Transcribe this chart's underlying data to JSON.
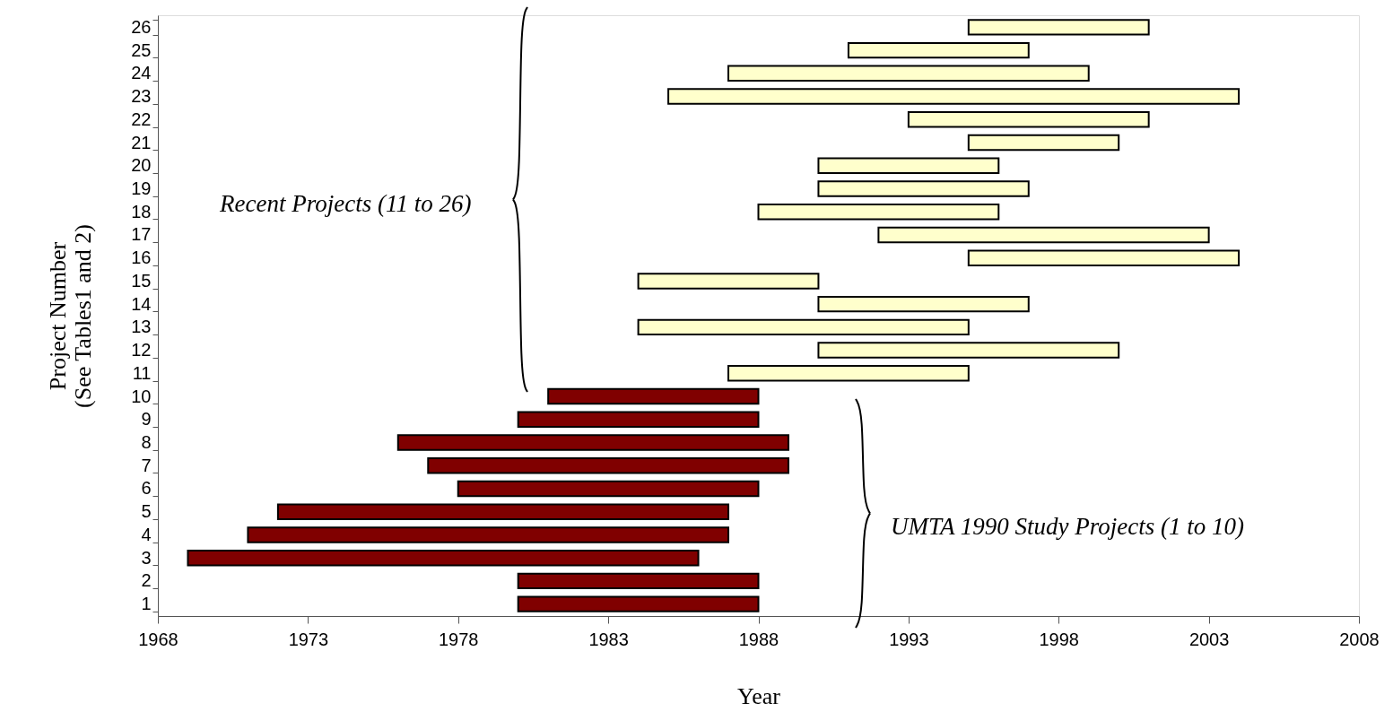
{
  "chart_data": {
    "type": "bar",
    "orientation": "horizontal",
    "xlabel": "Year",
    "ylabel": "Project Number\n(See Tables1 and 2)",
    "categories": [
      "26",
      "25",
      "24",
      "23",
      "22",
      "21",
      "20",
      "19",
      "18",
      "17",
      "16",
      "15",
      "14",
      "13",
      "12",
      "11",
      "10",
      "9",
      "8",
      "7",
      "6",
      "5",
      "4",
      "3",
      "2",
      "1"
    ],
    "base": [
      1995,
      1991,
      1987,
      1985,
      1993,
      1995,
      1990,
      1990,
      1988,
      1992,
      1995,
      1984,
      1990,
      1984,
      1990,
      1987,
      1981,
      1980,
      1976,
      1977,
      1978,
      1972,
      1971,
      1969,
      1980,
      1980
    ],
    "values": [
      6,
      6,
      12,
      19,
      8,
      5,
      6,
      7,
      8,
      11,
      9,
      6,
      7,
      11,
      10,
      8,
      7,
      8,
      13,
      12,
      10,
      15,
      16,
      17,
      8,
      8
    ],
    "colors": [
      "#ffffcc",
      "#ffffcc",
      "#ffffcc",
      "#ffffcc",
      "#ffffcc",
      "#ffffcc",
      "#ffffcc",
      "#ffffcc",
      "#ffffcc",
      "#ffffcc",
      "#ffffcc",
      "#ffffcc",
      "#ffffcc",
      "#ffffcc",
      "#ffffcc",
      "#ffffcc",
      "#800000",
      "#800000",
      "#800000",
      "#800000",
      "#800000",
      "#800000",
      "#800000",
      "#800000",
      "#800000",
      "#800000"
    ],
    "xlim": [
      1968,
      2008
    ],
    "xticks": [
      1968,
      1973,
      1978,
      1983,
      1988,
      1993,
      1998,
      2003,
      2008
    ],
    "grid": false,
    "annotations": [
      "Recent Projects (11 to 26)",
      "UMTA 1990 Study Projects (1 to 10)"
    ]
  }
}
